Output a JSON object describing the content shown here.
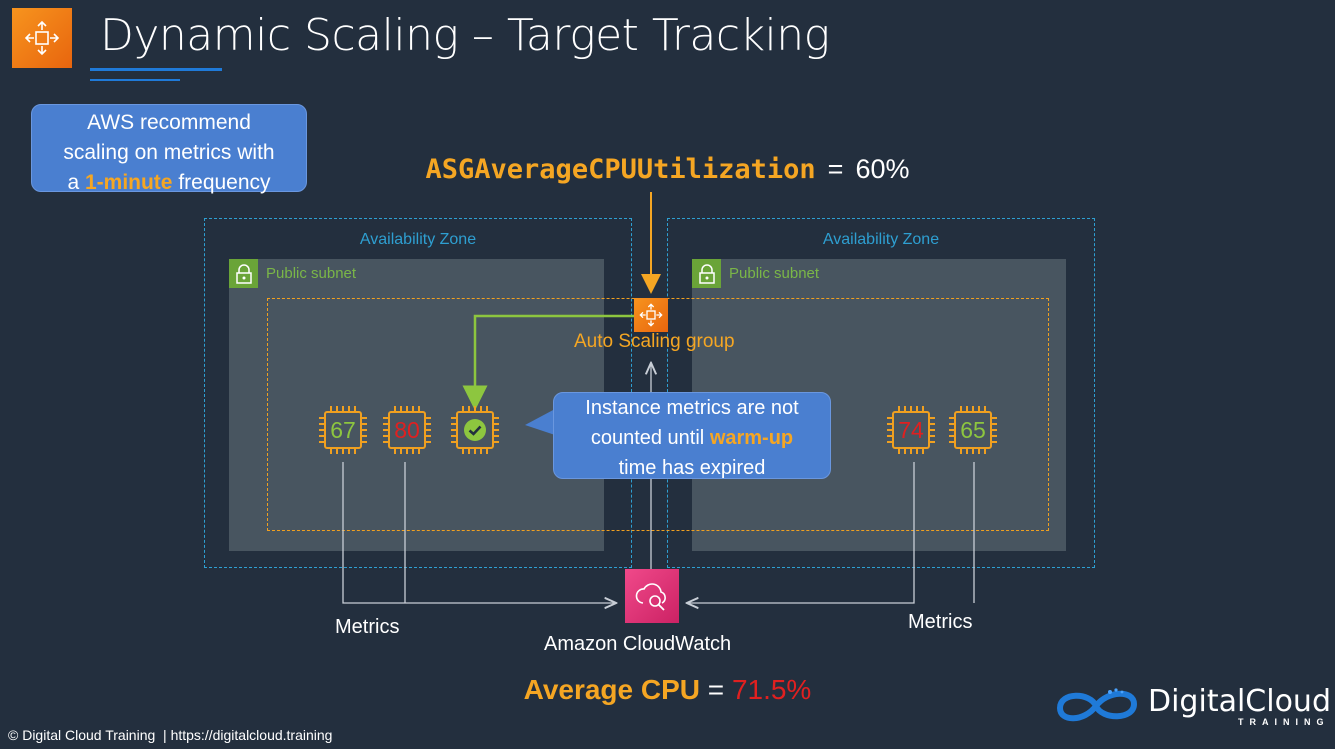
{
  "title": "Dynamic Scaling – Target Tracking",
  "note": {
    "line1": "AWS recommend",
    "line2": "scaling on metrics with",
    "prefix": "a ",
    "highlight": "1-minute",
    "suffix": " frequency"
  },
  "target_metric": {
    "name": "ASGAverageCPUUtilization",
    "operator": "=",
    "value": "60%"
  },
  "availability_zones": [
    {
      "label": "Availability Zone",
      "subnet": "Public subnet"
    },
    {
      "label": "Availability Zone",
      "subnet": "Public subnet"
    }
  ],
  "asg_label": "Auto Scaling group",
  "instances": [
    {
      "value": "67",
      "color": "#8dc63f"
    },
    {
      "value": "80",
      "color": "#e02020"
    },
    {
      "value": "",
      "status": "warming-up",
      "icon": "check-circle-icon"
    },
    {
      "value": "74",
      "color": "#e02020"
    },
    {
      "value": "65",
      "color": "#8dc63f"
    }
  ],
  "callout": {
    "line1": "Instance metrics are not",
    "prefix": "counted until ",
    "highlight": "warm-up",
    "line3": "time has expired"
  },
  "cloudwatch_label": "Amazon CloudWatch",
  "metrics_left": "Metrics",
  "metrics_right": "Metrics",
  "average": {
    "label": "Average CPU",
    "operator": " = ",
    "value": "71.5%"
  },
  "footer": "© Digital Cloud Training  | https://digitalcloud.training",
  "logo": {
    "name": "DigitalCloud",
    "sub": "TRAINING"
  },
  "colors": {
    "background": "#232f3e",
    "accent_orange": "#f5a623",
    "az_border": "#2e9fd1",
    "subnet_fill": "#485560",
    "callout_blue": "#4a7fd0",
    "ok_green": "#8dc63f",
    "alert_red": "#e02020"
  }
}
